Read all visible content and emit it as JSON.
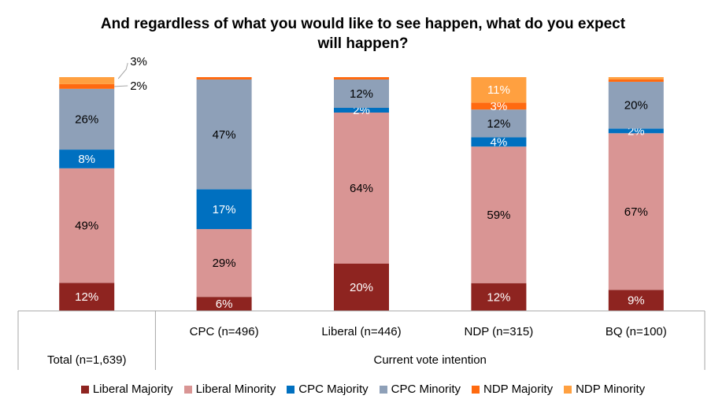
{
  "chart_data": {
    "type": "bar",
    "stacked": true,
    "title_lines": [
      "And regardless of what you would like to see happen, what do you expect",
      "will happen?"
    ],
    "categories": [
      "Total (n=1,639)",
      "CPC (n=496)",
      "Liberal (n=446)",
      "NDP (n=315)",
      "BQ (n=100)"
    ],
    "group_label": "Current vote intention",
    "series": [
      {
        "name": "Liberal Majority",
        "color": "#8E2420",
        "values": [
          12,
          6,
          20,
          12,
          9
        ],
        "labels": [
          "12%",
          "6%",
          "20%",
          "12%",
          "9%"
        ]
      },
      {
        "name": "Liberal Minority",
        "color": "#D99594",
        "values": [
          49,
          29,
          64,
          59,
          67
        ],
        "labels": [
          "49%",
          "29%",
          "64%",
          "59%",
          "67%"
        ]
      },
      {
        "name": "CPC Majority",
        "color": "#0070C0",
        "values": [
          8,
          17,
          2,
          4,
          2
        ],
        "labels": [
          "8%",
          "17%",
          "2%",
          "4%",
          "2%"
        ]
      },
      {
        "name": "CPC Minority",
        "color": "#8EA0B8",
        "values": [
          26,
          47,
          12,
          12,
          20
        ],
        "labels": [
          "26%",
          "47%",
          "12%",
          "12%",
          "20%"
        ]
      },
      {
        "name": "NDP Majority",
        "color": "#FF6A10",
        "values": [
          2,
          1,
          1,
          3,
          1
        ],
        "labels": [
          "2%",
          "",
          "",
          "3%",
          ""
        ]
      },
      {
        "name": "NDP Minority",
        "color": "#FFA040",
        "values": [
          3,
          0,
          0,
          11,
          1
        ],
        "labels": [
          "3%",
          "",
          "",
          "11%",
          ""
        ]
      }
    ],
    "ylim": [
      0,
      100
    ],
    "legend_position": "bottom",
    "grid": false
  }
}
